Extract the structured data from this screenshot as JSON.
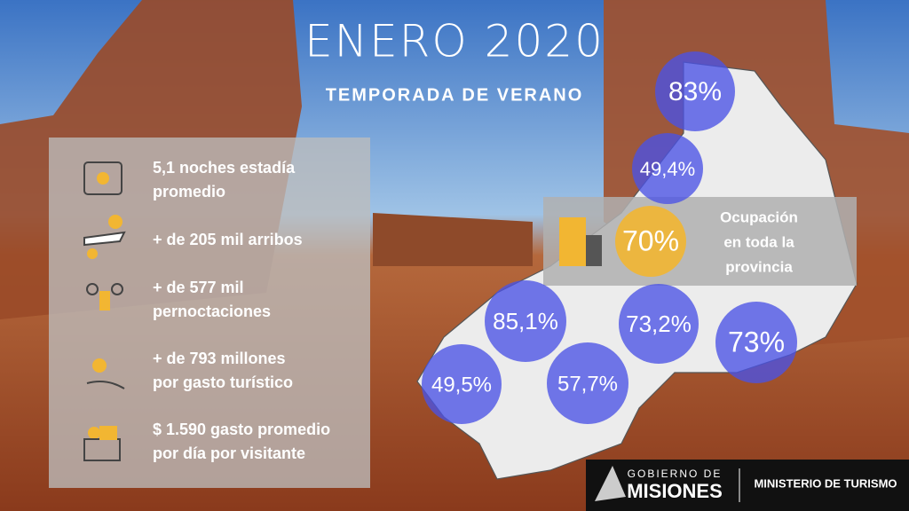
{
  "header": {
    "title": "ENERO 2020",
    "subtitle": "TEMPORADA DE VERANO"
  },
  "stats": [
    {
      "lines": [
        "5,1 noches estadía",
        "promedio"
      ]
    },
    {
      "lines": [
        "+ de 205 mil arribos"
      ]
    },
    {
      "lines": [
        "+ de 577 mil",
        "pernoctaciones"
      ]
    },
    {
      "lines": [
        "+ de 793 millones",
        " por gasto turístico"
      ]
    },
    {
      "lines": [
        "$ 1.590 gasto promedio",
        "por día por visitante"
      ]
    }
  ],
  "map": {
    "bubbles": [
      "83%",
      "49,4%",
      "85,1%",
      "73,2%",
      "73%",
      "49,5%",
      "57,7%"
    ],
    "province": {
      "value": "70%",
      "lines": [
        "Ocupación",
        "en toda la",
        "provincia"
      ]
    }
  },
  "footer": {
    "org_top": "GOBIERNO DE",
    "org_name": "MISIONES",
    "ministry": "MINISTERIO DE TURISMO"
  }
}
